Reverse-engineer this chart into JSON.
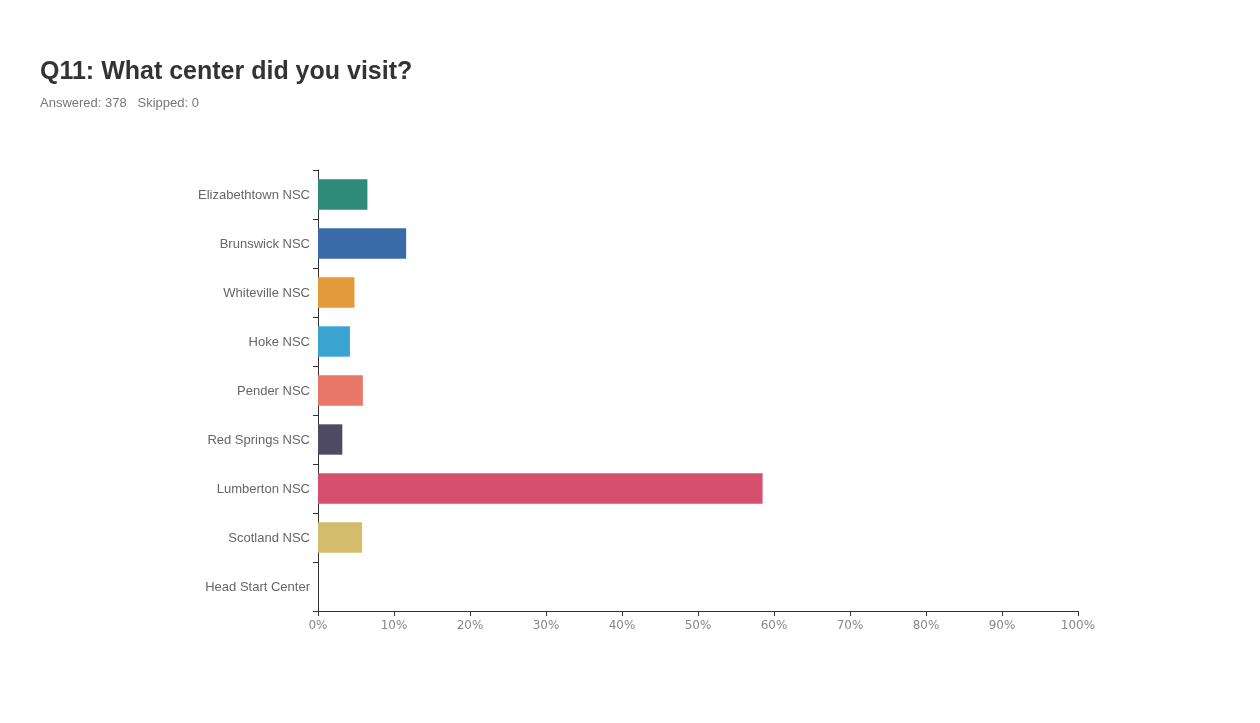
{
  "chart_data": {
    "type": "bar",
    "orientation": "horizontal",
    "title": "Q11: What center did you visit?",
    "subtitle": "Answered: 378   Skipped: 0",
    "categories": [
      "Elizabethtown NSC",
      "Brunswick NSC",
      "Whiteville NSC",
      "Hoke NSC",
      "Pender NSC",
      "Red Springs NSC",
      "Lumberton NSC",
      "Scotland NSC",
      "Head Start Center"
    ],
    "values": [
      6.5,
      11.6,
      4.8,
      4.2,
      5.9,
      3.2,
      58.5,
      5.8,
      0
    ],
    "colors": [
      "#2e8b7a",
      "#3a6aa8",
      "#e39a3a",
      "#3aa3d0",
      "#e8776a",
      "#4f4a63",
      "#d4506e",
      "#d3bd6c",
      "#7a7a7a"
    ],
    "xlim": [
      0,
      100
    ],
    "xticks": [
      {
        "value": 0,
        "label": "0%"
      },
      {
        "value": 10,
        "label": "10%"
      },
      {
        "value": 20,
        "label": "20%"
      },
      {
        "value": 30,
        "label": "30%"
      },
      {
        "value": 40,
        "label": "40%"
      },
      {
        "value": 50,
        "label": "50%"
      },
      {
        "value": 60,
        "label": "60%"
      },
      {
        "value": 70,
        "label": "70%"
      },
      {
        "value": 80,
        "label": "80%"
      },
      {
        "value": 90,
        "label": "90%"
      },
      {
        "value": 100,
        "label": "100%"
      }
    ],
    "grid": false
  }
}
